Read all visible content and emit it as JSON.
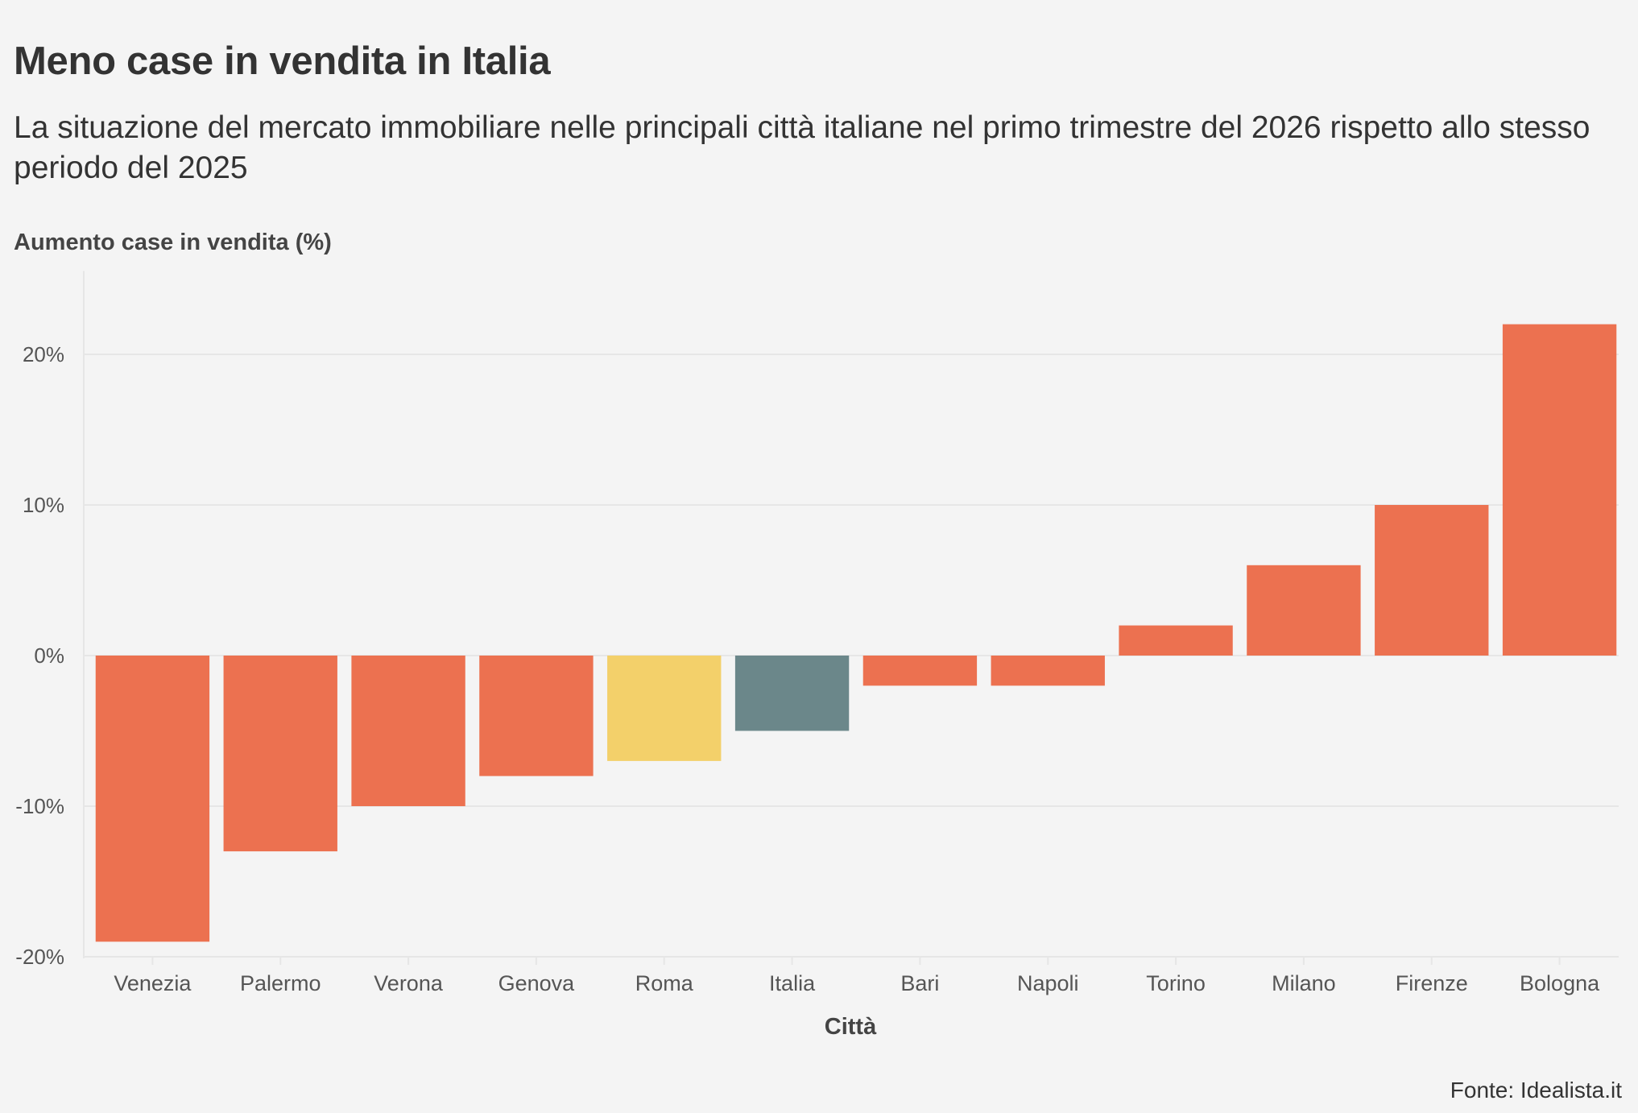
{
  "chart_data": {
    "type": "bar",
    "title": "Meno case in vendita in Italia",
    "subtitle": "La situazione del mercato immobiliare nelle principali città italiane nel primo trimestre del 2026 rispetto allo stesso periodo del 2025",
    "ylabel": "Aumento case in vendita (%)",
    "xlabel": "Città",
    "categories": [
      "Venezia",
      "Palermo",
      "Verona",
      "Genova",
      "Roma",
      "Italia",
      "Bari",
      "Napoli",
      "Torino",
      "Milano",
      "Firenze",
      "Bologna"
    ],
    "values": [
      -19,
      -13,
      -10,
      -8,
      -7,
      -5,
      -2,
      -2,
      2,
      6,
      10,
      22
    ],
    "bar_colors": [
      "#ec7150",
      "#ec7150",
      "#ec7150",
      "#ec7150",
      "#f3d06a",
      "#6b878a",
      "#ec7150",
      "#ec7150",
      "#ec7150",
      "#ec7150",
      "#ec7150",
      "#ec7150"
    ],
    "ylim": [
      -20,
      25
    ],
    "yticks": [
      20,
      10,
      0,
      -10,
      -20
    ],
    "ytick_labels": [
      "20%",
      "10%",
      "0%",
      "-10%",
      "-20%"
    ],
    "grid": true,
    "legend": "none"
  },
  "source": "Fonte: Idealista.it",
  "colors": {
    "background": "#f4f4f4",
    "gridline": "#e6e6e6",
    "text": "#333333"
  }
}
